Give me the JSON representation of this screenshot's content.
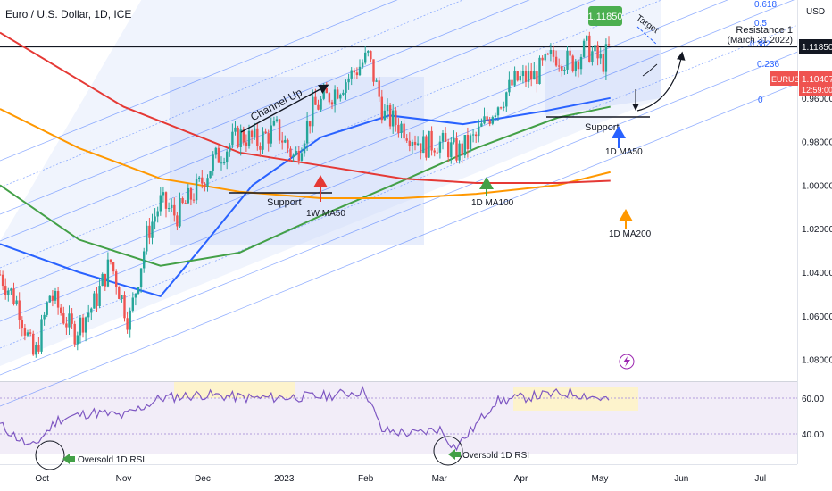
{
  "header": {
    "title": "Euro / U.S. Dollar, 1D, ICE"
  },
  "price_axis": {
    "unit": "USD",
    "ticks": [
      "1.08000",
      "1.06000",
      "1.04000",
      "1.02000",
      "1.00000",
      "0.98000",
      "0.96000"
    ],
    "level_label": "1.11850",
    "symbol_label": "EURUSD",
    "last_price": "1.10407",
    "countdown": "12:59:00"
  },
  "rsi_axis": {
    "ticks": [
      "60.00",
      "40.00"
    ]
  },
  "time_axis": {
    "ticks": [
      "Oct",
      "Nov",
      "Dec",
      "2023",
      "Feb",
      "Mar",
      "Apr",
      "May",
      "Jun",
      "Jul"
    ]
  },
  "fib_labels": [
    "0.618",
    "0.5",
    "0.382",
    "0.236",
    "0"
  ],
  "annotations": {
    "channel_up": "Channel Up",
    "support_1": "Support",
    "support_2": "Support",
    "ma_1w": "1W MA50",
    "ma_1d_100": "1D MA100",
    "ma_1d_50": "1D MA50",
    "ma_1d_200": "1D MA200",
    "target_price": "1.11850",
    "target": "Target",
    "resistance_title": "Resistance 1",
    "resistance_date": "(March 31 2022)",
    "oversold_1": "Oversold 1D RSI",
    "oversold_2": "Oversold 1D RSI"
  },
  "colors": {
    "up": "#26a69a",
    "down": "#ef5350",
    "ma50": "#2962ff",
    "ma100": "#43a047",
    "ma200": "#ff9800",
    "ma1w": "#e53935",
    "rsi": "#7e57c2",
    "channel": "#2962ff",
    "label_green": "#4caf50"
  },
  "chart_data": {
    "type": "candlestick",
    "title": "Euro / U.S. Dollar, 1D, ICE",
    "ylim": [
      0.95,
      1.125
    ],
    "y_ticks": [
      0.96,
      0.98,
      1.0,
      1.02,
      1.04,
      1.06,
      1.08
    ],
    "price_path": [
      [
        "2022-09-15",
        0.999
      ],
      [
        "2022-09-22",
        0.985
      ],
      [
        "2022-09-28",
        0.96
      ],
      [
        "2022-10-04",
        0.99
      ],
      [
        "2022-10-13",
        0.972
      ],
      [
        "2022-10-21",
        0.986
      ],
      [
        "2022-10-27",
        1.005
      ],
      [
        "2022-11-03",
        0.977
      ],
      [
        "2022-11-10",
        1.018
      ],
      [
        "2022-11-15",
        1.032
      ],
      [
        "2022-11-21",
        1.026
      ],
      [
        "2022-11-30",
        1.04
      ],
      [
        "2022-12-05",
        1.051
      ],
      [
        "2022-12-15",
        1.063
      ],
      [
        "2022-12-22",
        1.06
      ],
      [
        "2022-12-29",
        1.066
      ],
      [
        "2023-01-05",
        1.052
      ],
      [
        "2023-01-12",
        1.075
      ],
      [
        "2023-01-19",
        1.082
      ],
      [
        "2023-01-26",
        1.09
      ],
      [
        "2023-02-02",
        1.099
      ],
      [
        "2023-02-08",
        1.072
      ],
      [
        "2023-02-16",
        1.066
      ],
      [
        "2023-02-23",
        1.058
      ],
      [
        "2023-02-28",
        1.06
      ],
      [
        "2023-03-08",
        1.055
      ],
      [
        "2023-03-15",
        1.062
      ],
      [
        "2023-03-21",
        1.074
      ],
      [
        "2023-03-30",
        1.088
      ],
      [
        "2023-04-06",
        1.09
      ],
      [
        "2023-04-14",
        1.1
      ],
      [
        "2023-04-20",
        1.096
      ],
      [
        "2023-04-26",
        1.103
      ],
      [
        "2023-05-02",
        1.096
      ],
      [
        "2023-05-05",
        1.104
      ]
    ],
    "last_price": 1.10407,
    "resistance_level": 1.1185,
    "moving_averages": {
      "1D MA50": [
        [
          "2022-09-15",
          1.013
        ],
        [
          "2022-10-15",
          1.0
        ],
        [
          "2022-11-15",
          0.989
        ],
        [
          "2022-12-01",
          1.012
        ],
        [
          "2022-12-20",
          1.04
        ],
        [
          "2023-01-15",
          1.062
        ],
        [
          "2023-02-10",
          1.072
        ],
        [
          "2023-03-10",
          1.068
        ],
        [
          "2023-04-10",
          1.074
        ],
        [
          "2023-05-05",
          1.08
        ]
      ],
      "1D MA100": [
        [
          "2022-09-15",
          1.04
        ],
        [
          "2022-10-15",
          1.015
        ],
        [
          "2022-11-15",
          1.003
        ],
        [
          "2022-12-15",
          1.009
        ],
        [
          "2023-01-15",
          1.026
        ],
        [
          "2023-02-15",
          1.042
        ],
        [
          "2023-03-15",
          1.057
        ],
        [
          "2023-04-15",
          1.071
        ],
        [
          "2023-05-05",
          1.076
        ]
      ],
      "1D MA200": [
        [
          "2022-09-15",
          1.075
        ],
        [
          "2022-10-15",
          1.057
        ],
        [
          "2022-11-15",
          1.043
        ],
        [
          "2022-12-15",
          1.037
        ],
        [
          "2023-01-15",
          1.034
        ],
        [
          "2023-02-15",
          1.034
        ],
        [
          "2023-03-15",
          1.036
        ],
        [
          "2023-04-15",
          1.04
        ],
        [
          "2023-05-05",
          1.046
        ]
      ],
      "1W MA50": [
        [
          "2022-09-15",
          1.11
        ],
        [
          "2022-11-01",
          1.076
        ],
        [
          "2022-12-15",
          1.055
        ],
        [
          "2023-01-15",
          1.049
        ],
        [
          "2023-02-15",
          1.043
        ],
        [
          "2023-03-15",
          1.041
        ],
        [
          "2023-04-15",
          1.041
        ],
        [
          "2023-05-05",
          1.042
        ]
      ]
    },
    "rsi": {
      "y_ticks": [
        40,
        60
      ],
      "values": [
        [
          "2022-09-15",
          45
        ],
        [
          "2022-09-27",
          32
        ],
        [
          "2022-10-07",
          48
        ],
        [
          "2022-10-20",
          52
        ],
        [
          "2022-11-01",
          50
        ],
        [
          "2022-11-15",
          60
        ],
        [
          "2022-12-01",
          62
        ],
        [
          "2022-12-20",
          60
        ],
        [
          "2023-01-15",
          61
        ],
        [
          "2023-02-01",
          64
        ],
        [
          "2023-02-07",
          42
        ],
        [
          "2023-02-20",
          40
        ],
        [
          "2023-03-01",
          43
        ],
        [
          "2023-03-07",
          32
        ],
        [
          "2023-03-15",
          45
        ],
        [
          "2023-03-22",
          58
        ],
        [
          "2023-04-05",
          61
        ],
        [
          "2023-04-20",
          63
        ],
        [
          "2023-05-05",
          59
        ]
      ]
    }
  }
}
